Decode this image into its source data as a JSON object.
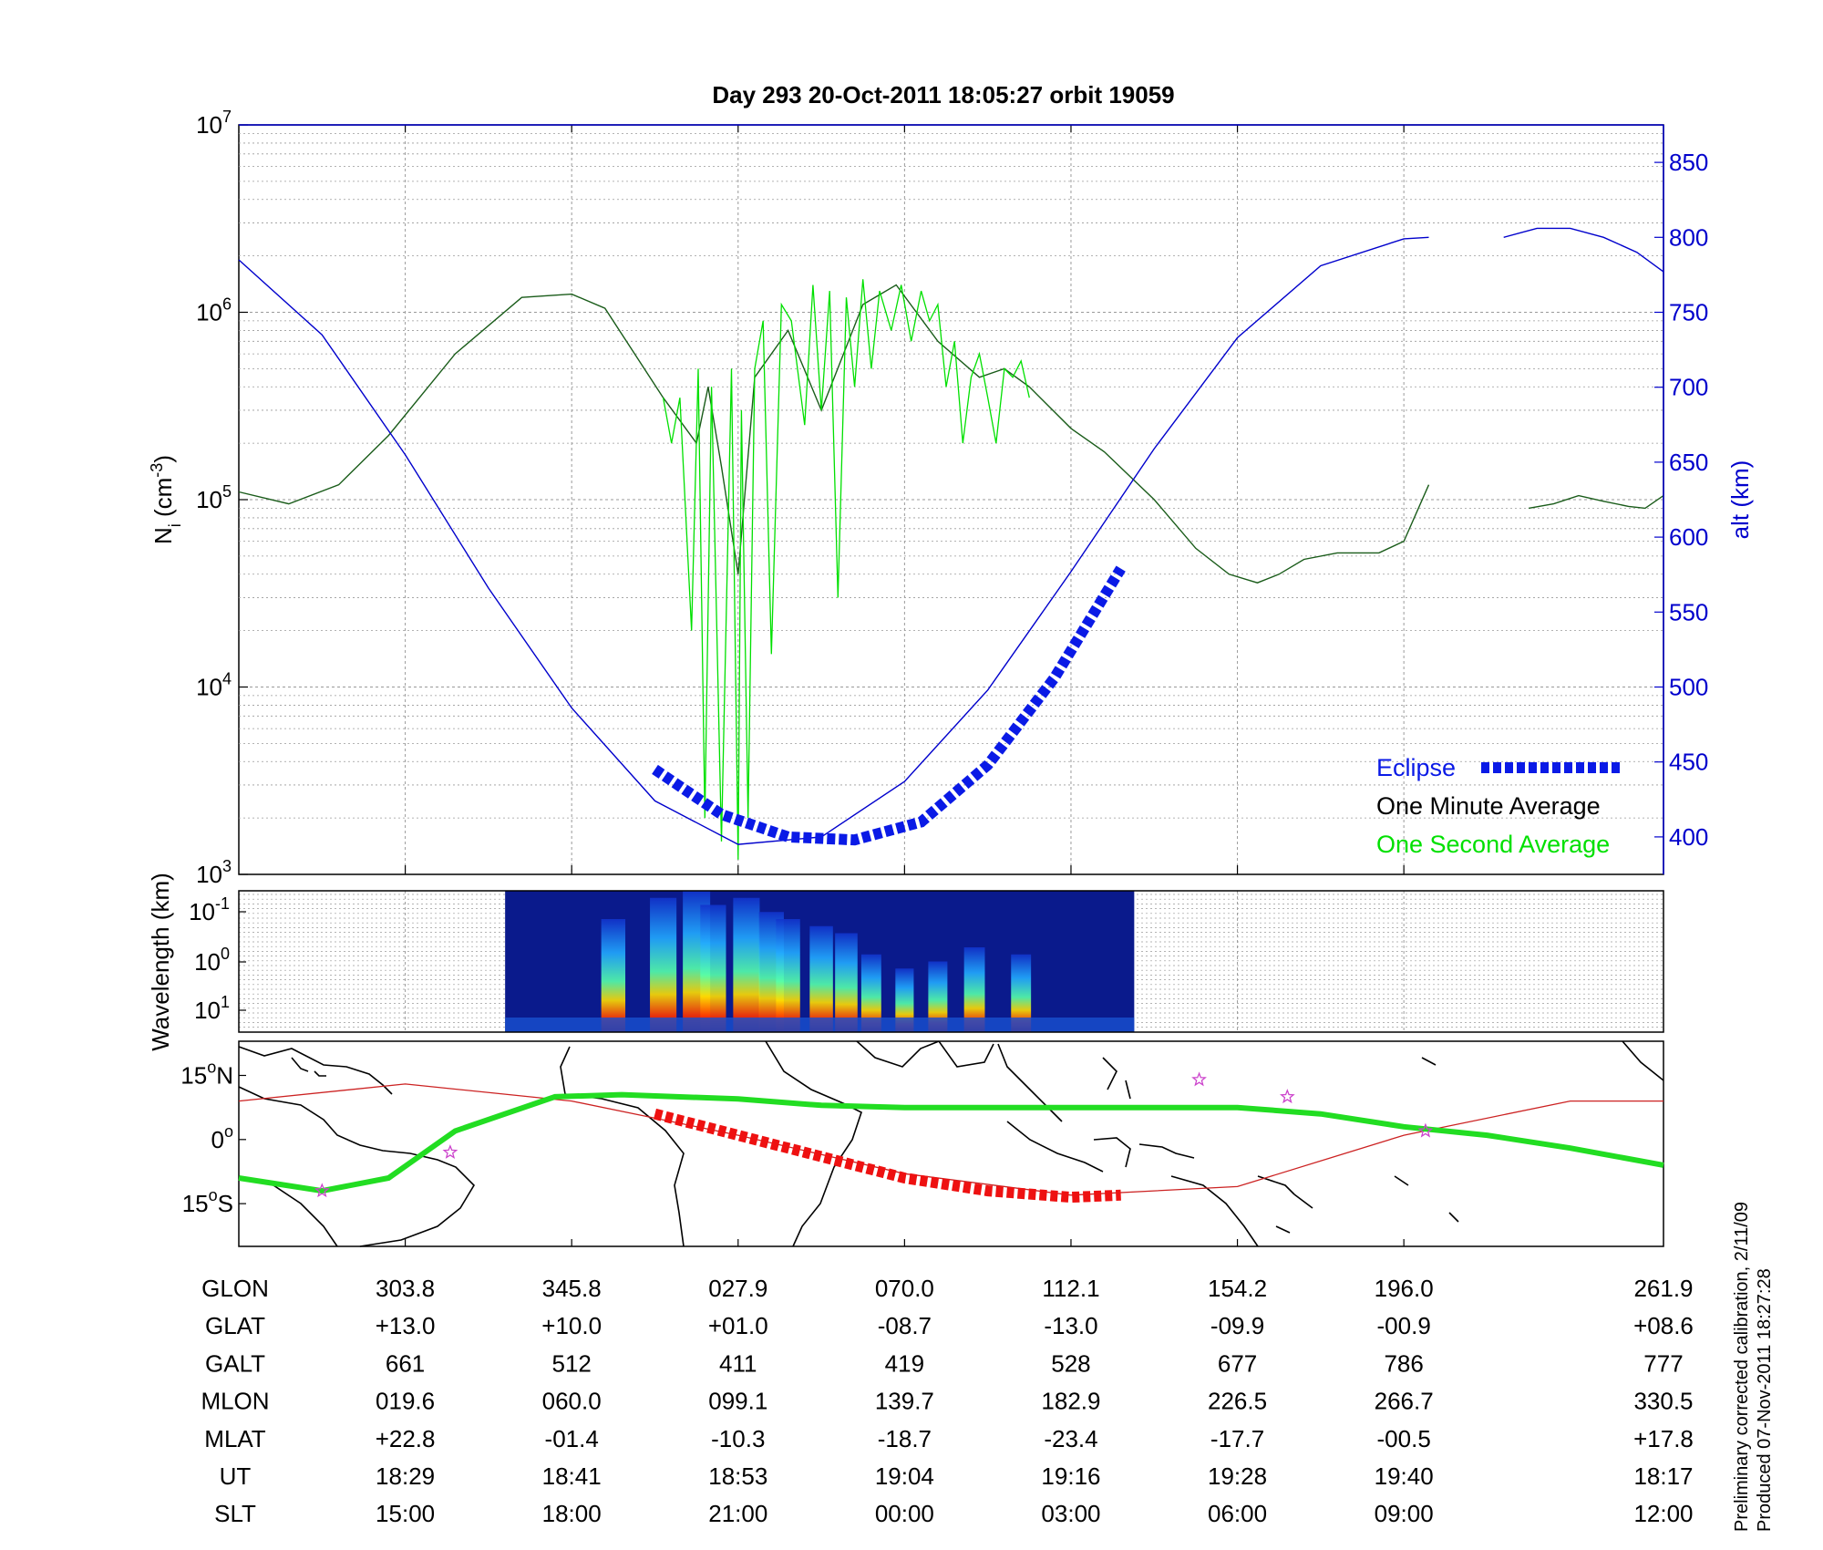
{
  "title": "Day 293  20-Oct-2011 18:05:27   orbit 19059",
  "footnote": {
    "line1": "Preliminary corrected calibration, 2/11/09",
    "line2": "Produced 07-Nov-2011 18:27:28"
  },
  "colors": {
    "density_minute": "#1a5c1a",
    "density_second": "#00e000",
    "altitude": "#0000cc",
    "eclipse": "#0a1ae6",
    "track_line": "#cc2222",
    "track_eclipse": "#ee1111",
    "track_ground": "#22dd22",
    "star": "#cc44cc",
    "grid": "#9a9a9a"
  },
  "chart_data": [
    {
      "type": "line",
      "panel": "density",
      "title": "Day 293  20-Oct-2011 18:05:27   orbit 19059",
      "ylabel_left": "N_i (cm^-3)",
      "ylabel_right": "alt (km)",
      "yscale_left": "log",
      "ylim_left": [
        1000,
        10000000
      ],
      "ylim_right": [
        375,
        875
      ],
      "xlim": [
        0,
        8.56
      ],
      "left_ticks": [
        {
          "base": "10",
          "exp": "3",
          "value": 1000
        },
        {
          "base": "10",
          "exp": "4",
          "value": 10000
        },
        {
          "base": "10",
          "exp": "5",
          "value": 100000
        },
        {
          "base": "10",
          "exp": "6",
          "value": 1000000
        },
        {
          "base": "10",
          "exp": "7",
          "value": 10000000
        }
      ],
      "right_ticks": [
        "400",
        "450",
        "500",
        "550",
        "600",
        "650",
        "700",
        "750",
        "800",
        "850"
      ],
      "legend": [
        {
          "label": "Eclipse",
          "style": "eclipse"
        },
        {
          "label": "One Minute Average",
          "style": "minute"
        },
        {
          "label": "One Second Average",
          "style": "second"
        }
      ],
      "legend_position": "bottom-right",
      "grid": true,
      "series": [
        {
          "name": "One Minute Average",
          "axis": "left",
          "x": [
            0,
            0.3,
            0.6,
            0.9,
            1.3,
            1.7,
            2.0,
            2.2,
            2.55,
            2.75,
            2.82,
            2.9,
            3.0,
            3.1,
            3.3,
            3.5,
            3.75,
            3.95,
            4.2,
            4.45,
            4.6,
            4.75,
            5.0,
            5.2,
            5.5,
            5.75,
            5.95,
            6.12,
            6.25,
            6.4,
            6.6,
            6.85,
            7.0,
            7.15
          ],
          "y": [
            110000,
            95000,
            120000,
            220000,
            600000,
            1200000,
            1250000,
            1050000,
            350000,
            200000,
            400000,
            150000,
            40000,
            450000,
            800000,
            300000,
            1100000,
            1400000,
            700000,
            450000,
            500000,
            400000,
            240000,
            180000,
            100000,
            55000,
            40000,
            36000,
            40000,
            48000,
            52000,
            52000,
            60000,
            120000
          ]
        },
        {
          "name": "One Minute Average",
          "axis": "left",
          "x": [
            7.75,
            7.9,
            8.05,
            8.2,
            8.35,
            8.45,
            8.56
          ],
          "y": [
            90000,
            95000,
            105000,
            98000,
            92000,
            90000,
            105000
          ]
        },
        {
          "name": "One Second Average",
          "axis": "left",
          "x": [
            2.55,
            2.6,
            2.65,
            2.72,
            2.76,
            2.8,
            2.84,
            2.9,
            2.96,
            3.0,
            3.02,
            3.06,
            3.1,
            3.15,
            3.2,
            3.26,
            3.32,
            3.4,
            3.45,
            3.5,
            3.55,
            3.6,
            3.65,
            3.7,
            3.75,
            3.8,
            3.85,
            3.92,
            3.98,
            4.04,
            4.1,
            4.15,
            4.2,
            4.25,
            4.3,
            4.35,
            4.4,
            4.45,
            4.5,
            4.55,
            4.6,
            4.65,
            4.7,
            4.75
          ],
          "y": [
            350000,
            200000,
            350000,
            20000,
            500000,
            2000,
            400000,
            1500,
            500000,
            1200,
            300000,
            2000,
            500000,
            900000,
            15000,
            1100000,
            900000,
            250000,
            1400000,
            300000,
            1300000,
            30000,
            1200000,
            400000,
            1500000,
            500000,
            1300000,
            800000,
            1400000,
            700000,
            1300000,
            900000,
            1100000,
            400000,
            700000,
            200000,
            450000,
            600000,
            350000,
            200000,
            500000,
            450000,
            550000,
            350000
          ]
        },
        {
          "name": "alt (km)",
          "axis": "right",
          "x": [
            0,
            0.5,
            1.0,
            1.5,
            2.0,
            2.5,
            3.0,
            3.5,
            4.0,
            4.5,
            5.0,
            5.5,
            6.0,
            6.5,
            7.0,
            7.15
          ],
          "y": [
            785,
            735,
            655,
            566,
            486,
            424,
            395,
            400,
            437,
            498,
            577,
            659,
            733,
            781,
            799,
            800
          ]
        },
        {
          "name": "alt (km)",
          "axis": "right",
          "x": [
            7.6,
            7.8,
            8.0,
            8.2,
            8.4,
            8.56
          ],
          "y": [
            800,
            806,
            806,
            800,
            790,
            777
          ]
        },
        {
          "name": "Eclipse",
          "axis": "right",
          "x": [
            2.5,
            2.9,
            3.3,
            3.7,
            4.1,
            4.5,
            4.9,
            5.3
          ],
          "y": [
            445,
            415,
            400,
            398,
            410,
            448,
            506,
            579
          ]
        }
      ]
    },
    {
      "type": "heatmap",
      "panel": "spectrogram",
      "ylabel": "Wavelength (km)",
      "xlim": [
        0,
        8.56
      ],
      "y_ticks": [
        {
          "base": "10",
          "exp": "-1"
        },
        {
          "base": "10",
          "exp": "0"
        },
        {
          "base": "10",
          "exp": "1"
        }
      ],
      "data_extent_x": [
        1.6,
        5.38
      ],
      "bursts": [
        {
          "x": 2.25,
          "intensity": 0.8
        },
        {
          "x": 2.55,
          "intensity": 0.95
        },
        {
          "x": 2.75,
          "intensity": 1.0
        },
        {
          "x": 2.85,
          "intensity": 0.9
        },
        {
          "x": 3.05,
          "intensity": 0.95
        },
        {
          "x": 3.2,
          "intensity": 0.85
        },
        {
          "x": 3.3,
          "intensity": 0.8
        },
        {
          "x": 3.5,
          "intensity": 0.75
        },
        {
          "x": 3.65,
          "intensity": 0.7
        },
        {
          "x": 3.8,
          "intensity": 0.55
        },
        {
          "x": 4.0,
          "intensity": 0.45
        },
        {
          "x": 4.2,
          "intensity": 0.5
        },
        {
          "x": 4.42,
          "intensity": 0.6
        },
        {
          "x": 4.7,
          "intensity": 0.55
        }
      ]
    },
    {
      "type": "line",
      "panel": "ground_track",
      "ylim": [
        -25,
        23
      ],
      "y_ticks": [
        {
          "value": 15,
          "label": "15",
          "sup": "o",
          "suffix": "N"
        },
        {
          "value": 0,
          "label": "0",
          "sup": "o",
          "suffix": ""
        },
        {
          "value": -15,
          "label": "15",
          "sup": "o",
          "suffix": "S"
        }
      ],
      "series": [
        {
          "name": "orbit track",
          "x": [
            0,
            1.0,
            2.0,
            3.0,
            4.0,
            5.0,
            6.0,
            7.0,
            8.0,
            8.56
          ],
          "y": [
            9,
            13,
            9,
            1,
            -8,
            -13,
            -11,
            1,
            9,
            9
          ]
        },
        {
          "name": "ground track",
          "x": [
            0,
            0.5,
            0.9,
            1.3,
            1.9,
            2.3,
            3.0,
            3.5,
            4.0,
            4.5,
            5.0,
            5.5,
            6.0,
            6.5,
            7.0,
            7.5,
            8.0,
            8.56
          ],
          "y": [
            -9,
            -12,
            -9,
            2,
            10,
            10.5,
            9.5,
            8,
            7.5,
            7.5,
            7.5,
            7.5,
            7.5,
            6,
            3,
            1,
            -2,
            -6
          ]
        },
        {
          "name": "eclipse track",
          "x": [
            2.5,
            3.0,
            3.5,
            4.0,
            4.5,
            5.0,
            5.3
          ],
          "y": [
            6,
            1,
            -4,
            -9,
            -12,
            -13.5,
            -13
          ]
        }
      ],
      "stars": [
        {
          "x": 0.5,
          "y": -12
        },
        {
          "x": 1.27,
          "y": -3
        },
        {
          "x": 5.77,
          "y": 14
        },
        {
          "x": 6.3,
          "y": 10
        },
        {
          "x": 7.13,
          "y": 2
        }
      ]
    },
    {
      "type": "table",
      "panel": "ephemeris",
      "rows": [
        {
          "label": "GLON",
          "values": [
            "303.8",
            "345.8",
            "027.9",
            "070.0",
            "112.1",
            "154.2",
            "196.0",
            "261.9"
          ]
        },
        {
          "label": "GLAT",
          "values": [
            "+13.0",
            "+10.0",
            "+01.0",
            "-08.7",
            "-13.0",
            "-09.9",
            "-00.9",
            "+08.6"
          ]
        },
        {
          "label": "GALT",
          "values": [
            "661",
            "512",
            "411",
            "419",
            "528",
            "677",
            "786",
            "777"
          ]
        },
        {
          "label": "MLON",
          "values": [
            "019.6",
            "060.0",
            "099.1",
            "139.7",
            "182.9",
            "226.5",
            "266.7",
            "330.5"
          ]
        },
        {
          "label": "MLAT",
          "values": [
            "+22.8",
            "-01.4",
            "-10.3",
            "-18.7",
            "-23.4",
            "-17.7",
            "-00.5",
            "+17.8"
          ]
        },
        {
          "label": "UT",
          "values": [
            "18:29",
            "18:41",
            "18:53",
            "19:04",
            "19:16",
            "19:28",
            "19:40",
            "18:17"
          ]
        },
        {
          "label": "SLT",
          "values": [
            "15:00",
            "18:00",
            "21:00",
            "00:00",
            "03:00",
            "06:00",
            "09:00",
            "12:00"
          ]
        }
      ]
    }
  ]
}
